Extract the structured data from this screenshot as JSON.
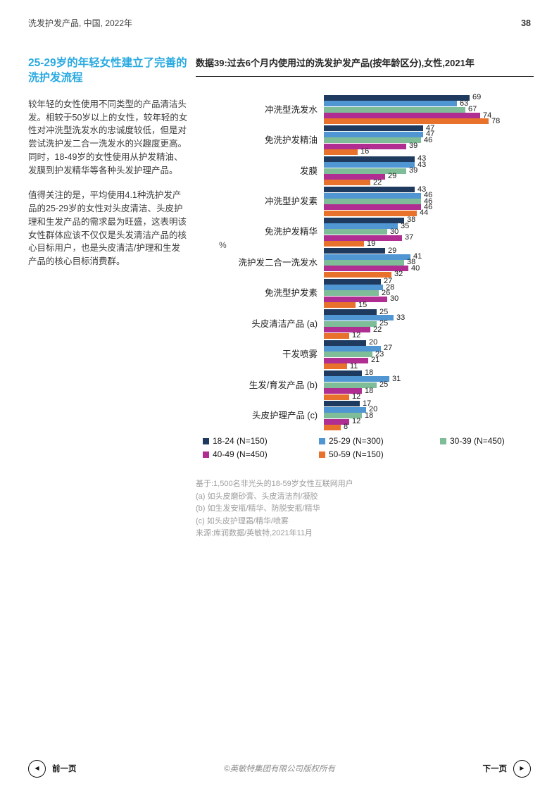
{
  "header": {
    "title": "洗发护发产品, 中国, 2022年",
    "page_number": "38"
  },
  "sidebar": {
    "heading": "25-29岁的年轻女性建立了完善的洗护发流程",
    "paragraph1": "较年轻的女性使用不同类型的产品清洁头发。相较于50岁以上的女性，较年轻的女性对冲洗型洗发水的忠诚度较低，但是对尝试洗护发二合一洗发水的兴趣度更高。同时，18-49岁的女性使用从护发精油、发膜到护发精华等各种头发护理产品。",
    "paragraph2": "值得关注的是，平均使用4.1种洗护发产品的25-29岁的女性对头皮清洁、头皮护理和生发产品的需求最为旺盛，这表明该女性群体应该不仅仅是头发清洁产品的核心目标用户，也是头皮清洁/护理和生发产品的核心目标消费群。"
  },
  "chart": {
    "title": "数据39:过去6个月内使用过的洗发护发产品(按年龄区分),女性,2021年",
    "axis_label": "%"
  },
  "chart_data": {
    "type": "bar",
    "orientation": "horizontal",
    "title": "数据39:过去6个月内使用过的洗发护发产品(按年龄区分),女性,2021年",
    "unit": "%",
    "xlim": [
      0,
      100
    ],
    "value_labels": true,
    "legend_position": "bottom",
    "categories": [
      "冲洗型洗发水",
      "免洗护发精油",
      "发膜",
      "冲洗型护发素",
      "免洗护发精华",
      "洗护发二合一洗发水",
      "免洗型护发素",
      "头皮清洁产品 (a)",
      "干发喷雾",
      "生发/育发产品 (b)",
      "头皮护理产品 (c)"
    ],
    "series": [
      {
        "name": "18-24 (N=150)",
        "color": "#1F3A5F",
        "values": [
          69,
          47,
          43,
          43,
          38,
          29,
          27,
          25,
          20,
          18,
          17
        ]
      },
      {
        "name": "25-29 (N=300)",
        "color": "#4F96D2",
        "values": [
          63,
          47,
          43,
          46,
          35,
          41,
          28,
          33,
          27,
          31,
          20
        ]
      },
      {
        "name": "30-39 (N=450)",
        "color": "#7FBD99",
        "values": [
          67,
          46,
          39,
          46,
          30,
          38,
          26,
          25,
          23,
          25,
          18
        ]
      },
      {
        "name": "40-49 (N=450)",
        "color": "#B02D92",
        "values": [
          74,
          39,
          29,
          46,
          37,
          40,
          30,
          22,
          21,
          18,
          12
        ]
      },
      {
        "name": "50-59 (N=150)",
        "color": "#E8712B",
        "values": [
          78,
          16,
          22,
          44,
          19,
          32,
          15,
          12,
          11,
          12,
          8
        ]
      }
    ]
  },
  "footnotes": [
    "基于:1,500名非光头的18-59岁女性互联网用户",
    "(a) 如头皮磨砂膏、头皮清洁剂/凝胶",
    "(b) 如生发安瓶/精华、防脱安瓶/精华",
    "(c) 如头皮护理霜/精华/喷雾",
    "来源:库润数据/英敏特,2021年11月"
  ],
  "footer": {
    "prev_label": "前一页",
    "next_label": "下一页",
    "copyright": "©英敏特集团有限公司版权所有"
  },
  "colors": {
    "accent_blue": "#29A9E0",
    "bar_navy": "#1F3A5F",
    "bar_blue": "#4F96D2",
    "bar_green": "#7FBD99",
    "bar_magenta": "#B02D92",
    "bar_orange": "#E8712B"
  }
}
